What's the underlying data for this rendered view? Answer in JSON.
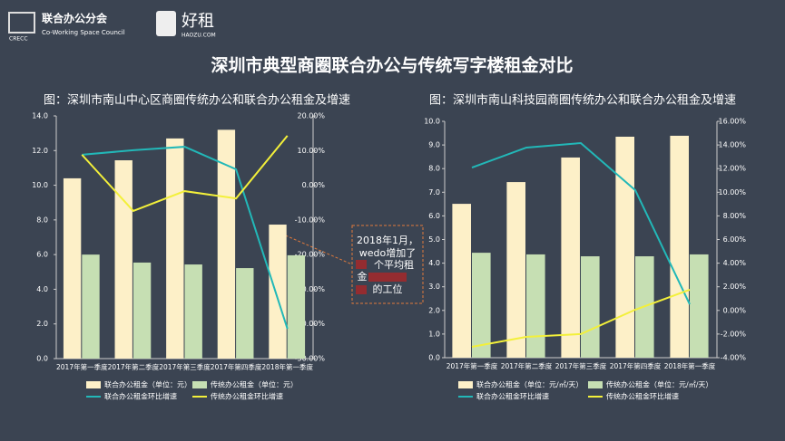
{
  "header": {
    "logo_abbr": "CRECC",
    "org_name": "联合办公分会",
    "org_english": "Co-Working Space Council",
    "brand": "好租",
    "brand_url": "HAOZU.COM",
    "title": "深圳市典型商圈联合办公与传统写字楼租金对比"
  },
  "annotation": {
    "lines": [
      "2018年1月，",
      "wedo增加了",
      "个平均租",
      "金",
      "的工位"
    ]
  },
  "chart_data": [
    {
      "type": "combo",
      "title": "图：深圳市南山中心区商圈传统办公和联合办公租金及增速",
      "categories": [
        "2017年第一季度",
        "2017年第二季度",
        "2017年第三季度",
        "2017年第四季度",
        "2018年第一季度"
      ],
      "series": [
        {
          "name": "联合办公租金（单位：元）",
          "type": "bar",
          "color": "#fdf0c8",
          "values": [
            10.4,
            11.44,
            12.7,
            13.2,
            7.73
          ]
        },
        {
          "name": "传统办公租金（单位：元）",
          "type": "bar",
          "color": "#c6dfb3",
          "values": [
            6.0,
            5.54,
            5.43,
            5.22,
            5.96
          ]
        },
        {
          "name": "联合办公租金环比增速",
          "type": "line",
          "axis": "y2",
          "color": "#22b8b8",
          "values": [
            8.8,
            10.1,
            11.1,
            4.6,
            -41.4
          ]
        },
        {
          "name": "传统办公租金环比增速",
          "type": "line",
          "axis": "y2",
          "color": "#f3f03a",
          "values": [
            8.8,
            -7.4,
            -1.7,
            -3.8,
            14.3
          ]
        }
      ],
      "ylim": [
        0,
        14
      ],
      "yticks": [
        {
          "value": 0,
          "label": "0.0"
        },
        {
          "value": 2,
          "label": "2.0"
        },
        {
          "value": 4,
          "label": "4.0"
        },
        {
          "value": 6,
          "label": "6.0"
        },
        {
          "value": 8,
          "label": "8.0"
        },
        {
          "value": 10,
          "label": "10.0"
        },
        {
          "value": 12,
          "label": "12.0"
        },
        {
          "value": 14,
          "label": "14.0"
        }
      ],
      "y2lim": [
        -50,
        20
      ],
      "y2ticks": [
        {
          "value": -50,
          "label": "-50.00%"
        },
        {
          "value": -40,
          "label": "-40.00%"
        },
        {
          "value": -30,
          "label": "-30.00%"
        },
        {
          "value": -20,
          "label": "-20.00%"
        },
        {
          "value": -10,
          "label": "-10.00%"
        },
        {
          "value": 0,
          "label": "0.00%"
        },
        {
          "value": 10,
          "label": "10.00%"
        },
        {
          "value": 20,
          "label": "20.00%"
        }
      ]
    },
    {
      "type": "combo",
      "title": "图：深圳市南山科技园商圈传统办公和联合办公租金及增速",
      "categories": [
        "2017年第一季度",
        "2017年第二季度",
        "2017年第三季度",
        "2017年第四季度",
        "2018年第一季度"
      ],
      "series": [
        {
          "name": "联合办公租金（单位：元/㎡/天）",
          "type": "bar",
          "color": "#fdf0c8",
          "values": [
            6.51,
            7.43,
            8.47,
            9.35,
            9.39
          ]
        },
        {
          "name": "传统办公租金（单位：元/㎡/天）",
          "type": "bar",
          "color": "#c6dfb3",
          "values": [
            4.44,
            4.37,
            4.29,
            4.29,
            4.37
          ]
        },
        {
          "name": "联合办公租金环比增速",
          "type": "line",
          "axis": "y2",
          "color": "#22b8b8",
          "values": [
            12.09,
            13.78,
            14.16,
            10.18,
            0.52
          ]
        },
        {
          "name": "传统办公租金环比增速",
          "type": "line",
          "axis": "y2",
          "color": "#f3f03a",
          "values": [
            -3.08,
            -2.24,
            -2.0,
            0.06,
            1.75
          ]
        }
      ],
      "ylim": [
        0,
        10
      ],
      "yticks": [
        {
          "value": 0,
          "label": "0.0"
        },
        {
          "value": 1,
          "label": "1.0"
        },
        {
          "value": 2,
          "label": "2.0"
        },
        {
          "value": 3,
          "label": "3.0"
        },
        {
          "value": 4,
          "label": "4.0"
        },
        {
          "value": 5,
          "label": "5.0"
        },
        {
          "value": 6,
          "label": "6.0"
        },
        {
          "value": 7,
          "label": "7.0"
        },
        {
          "value": 8,
          "label": "8.0"
        },
        {
          "value": 9,
          "label": "9.0"
        },
        {
          "value": 10,
          "label": "10.0"
        }
      ],
      "y2lim": [
        -4,
        16
      ],
      "y2ticks": [
        {
          "value": -4,
          "label": "-4.00%"
        },
        {
          "value": -2,
          "label": "-2.00%"
        },
        {
          "value": 0,
          "label": "0.00%"
        },
        {
          "value": 2,
          "label": "2.00%"
        },
        {
          "value": 4,
          "label": "4.00%"
        },
        {
          "value": 6,
          "label": "6.00%"
        },
        {
          "value": 8,
          "label": "8.00%"
        },
        {
          "value": 10,
          "label": "10.00%"
        },
        {
          "value": 12,
          "label": "12.00%"
        },
        {
          "value": 14,
          "label": "14.00%"
        },
        {
          "value": 16,
          "label": "16.00%"
        }
      ]
    }
  ]
}
